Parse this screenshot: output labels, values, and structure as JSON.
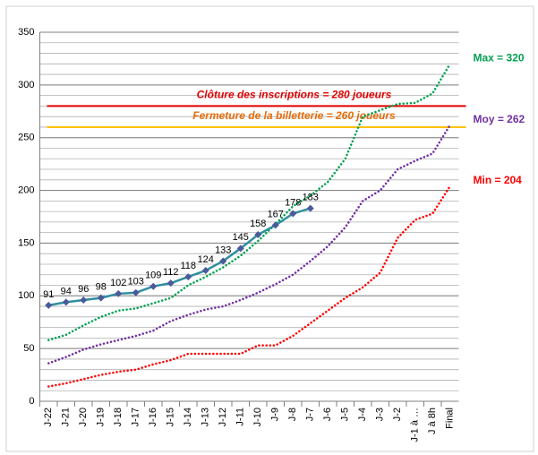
{
  "chart_data": {
    "type": "line",
    "categories": [
      "J-22",
      "J-21",
      "J-20",
      "J-19",
      "J-18",
      "J-17",
      "J-16",
      "J-15",
      "J-14",
      "J-13",
      "J-12",
      "J-11",
      "J-10",
      "J-9",
      "J-8",
      "J-7",
      "J-6",
      "J-5",
      "J-4",
      "J-3",
      "J-2",
      "J-1 à …",
      "J à 8h",
      "Final"
    ],
    "series": [
      {
        "color": "#2e8fa0",
        "marker_color": "#4a5a9a",
        "dotted": false,
        "data_labels": true,
        "values": [
          91,
          94,
          96,
          98,
          102,
          103,
          109,
          112,
          118,
          124,
          133,
          145,
          158,
          167,
          178,
          183,
          null,
          null,
          null,
          null,
          null,
          null,
          null,
          null
        ]
      },
      {
        "color": "#00a050",
        "dotted": true,
        "label": "Max = 320",
        "values": [
          58,
          63,
          72,
          80,
          86,
          88,
          93,
          98,
          110,
          118,
          127,
          138,
          152,
          168,
          185,
          195,
          208,
          230,
          270,
          276,
          282,
          283,
          292,
          320
        ]
      },
      {
        "color": "#7030a0",
        "dotted": true,
        "label": "Moy = 262",
        "values": [
          36,
          42,
          49,
          54,
          58,
          62,
          67,
          76,
          82,
          87,
          90,
          96,
          103,
          111,
          120,
          133,
          147,
          165,
          190,
          200,
          220,
          228,
          235,
          262
        ]
      },
      {
        "color": "#ff0000",
        "dotted": true,
        "label": "Min = 204",
        "values": [
          14,
          17,
          21,
          25,
          28,
          30,
          35,
          39,
          45,
          45,
          45,
          45,
          53,
          53,
          62,
          74,
          86,
          98,
          108,
          122,
          155,
          172,
          178,
          204
        ]
      }
    ],
    "annotations": [
      {
        "text": "Clôture des inscriptions = 280 joueurs",
        "value": 280,
        "color": "#e00000",
        "text_color": "#e00000"
      },
      {
        "text": "Fermeture de la billetterie = 260 joueurs",
        "value": 260,
        "color": "#ffc000",
        "text_color": "#e46c0a"
      }
    ],
    "ylim": [
      0,
      350
    ],
    "yticks": [
      0,
      50,
      100,
      150,
      200,
      250,
      300,
      350
    ],
    "grid": true,
    "minor_grid_step": 10
  }
}
